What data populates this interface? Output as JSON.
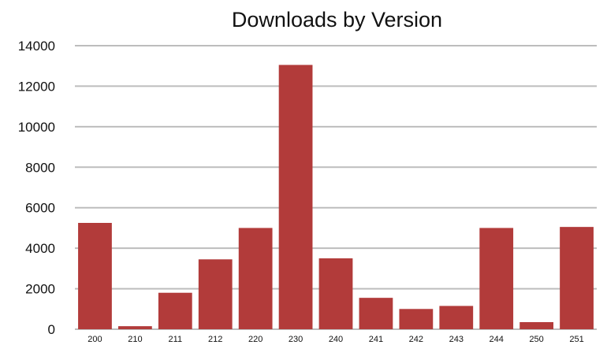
{
  "chart_data": {
    "type": "bar",
    "title": "Downloads by Version",
    "xlabel": "",
    "ylabel": "",
    "categories": [
      "200",
      "210",
      "211",
      "212",
      "220",
      "230",
      "240",
      "241",
      "242",
      "243",
      "244",
      "250",
      "251"
    ],
    "values": [
      5250,
      150,
      1800,
      3450,
      5000,
      13050,
      3500,
      1550,
      1000,
      1150,
      5000,
      350,
      5050
    ],
    "ylim": [
      0,
      14000
    ],
    "yticks": [
      "0",
      "2000",
      "4000",
      "6000",
      "8000",
      "10000",
      "12000",
      "14000"
    ],
    "grid": true,
    "bar_color": "#b23b3a",
    "grid_color": "#bdbdbd"
  }
}
